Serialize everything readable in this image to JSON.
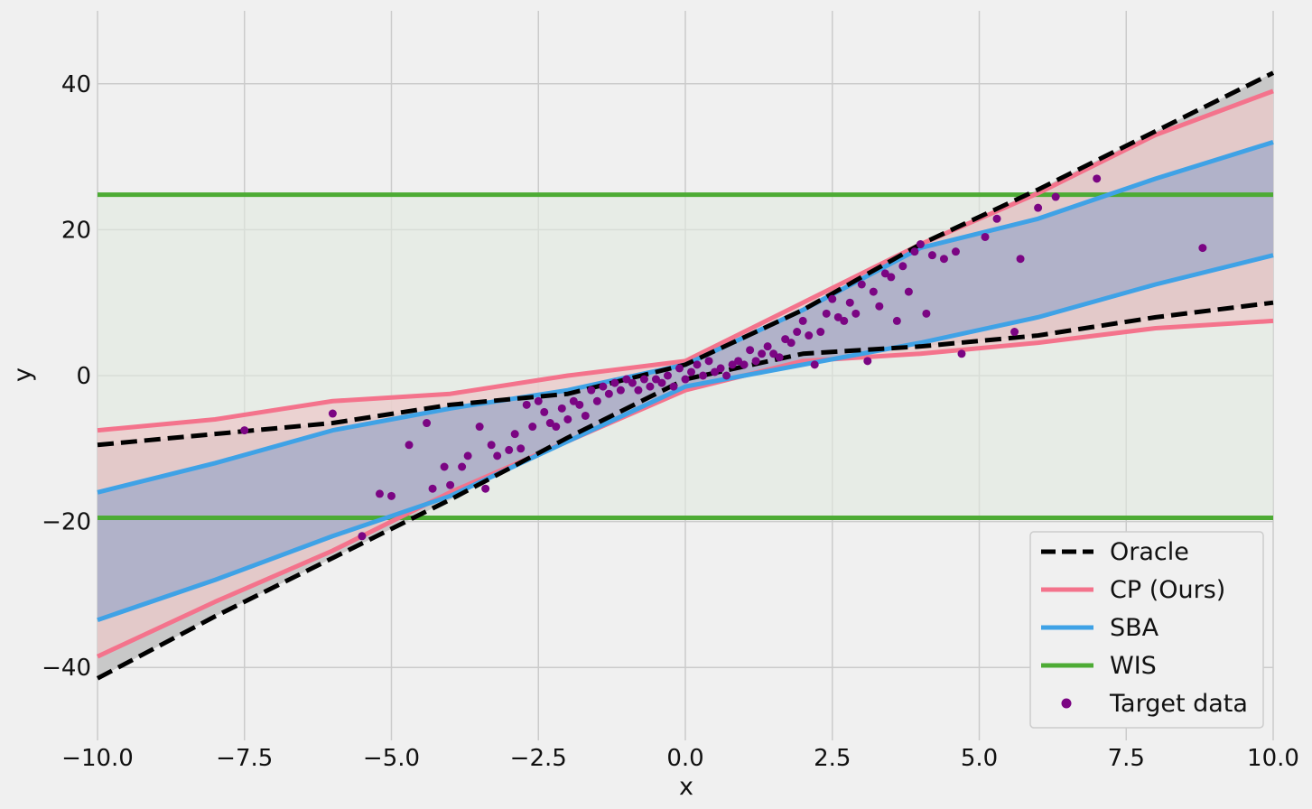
{
  "chart_data": {
    "type": "line",
    "title": "",
    "xlabel": "x",
    "ylabel": "y",
    "xlim": [
      -10,
      10
    ],
    "ylim": [
      -50,
      50
    ],
    "grid": true,
    "legend_position": "bottom-right",
    "xticks": [
      -10.0,
      -7.5,
      -5.0,
      -2.5,
      0.0,
      2.5,
      5.0,
      7.5,
      10.0
    ],
    "xtick_labels": [
      "−10.0",
      "−7.5",
      "−5.0",
      "−2.5",
      "0.0",
      "2.5",
      "5.0",
      "7.5",
      "10.0"
    ],
    "yticks": [
      -40,
      -20,
      0,
      20,
      40
    ],
    "ytick_labels": [
      "−40",
      "−20",
      "0",
      "20",
      "40"
    ],
    "colors": {
      "oracle": "#000000",
      "oracle_fill": "#c8c8c8",
      "cp": "#f4738c",
      "cp_fill": "#eccaca",
      "sba": "#3fa2e6",
      "sba_fill": "#a8aec9",
      "wis": "#4dab34",
      "wis_fill": "#e1eadf",
      "target": "#7b0583",
      "background": "#f0f0f0",
      "grid": "#cbcbcb"
    },
    "series": [
      {
        "name": "Oracle",
        "style": "dashed",
        "lower": {
          "x": [
            -10,
            -8,
            -6,
            -4,
            -2,
            0,
            2,
            4,
            6,
            8,
            10
          ],
          "y": [
            -41.5,
            -33,
            -25,
            -17,
            -8.5,
            -0.5,
            3,
            4,
            5.5,
            8,
            10
          ]
        },
        "upper": {
          "x": [
            -10,
            -8,
            -6,
            -4,
            -2,
            0,
            2,
            4,
            6,
            8,
            10
          ],
          "y": [
            -9.5,
            -8,
            -6.5,
            -4,
            -2.5,
            1.5,
            9,
            18,
            25.5,
            33.5,
            41.5
          ]
        }
      },
      {
        "name": "CP (Ours)",
        "style": "solid",
        "lower": {
          "x": [
            -10,
            -8,
            -6,
            -4,
            -2,
            0,
            2,
            4,
            6,
            8,
            10
          ],
          "y": [
            -38.5,
            -31,
            -24,
            -16,
            -9,
            -2,
            2,
            3,
            4.5,
            6.5,
            7.5
          ]
        },
        "upper": {
          "x": [
            -10,
            -8,
            -6,
            -4,
            -2,
            0,
            2,
            4,
            6,
            8,
            10
          ],
          "y": [
            -7.5,
            -6,
            -3.5,
            -2.5,
            0,
            2,
            10,
            18,
            25,
            33,
            39
          ]
        }
      },
      {
        "name": "SBA",
        "style": "solid",
        "lower": {
          "x": [
            -10,
            -8,
            -6,
            -4,
            -2,
            0,
            2,
            4,
            6,
            8,
            10
          ],
          "y": [
            -33.5,
            -28,
            -22,
            -16.5,
            -9,
            -1.5,
            1.5,
            4.5,
            8,
            12.5,
            16.5
          ]
        },
        "upper": {
          "x": [
            -10,
            -8,
            -6,
            -4,
            -2,
            0,
            2,
            4,
            6,
            8,
            10
          ],
          "y": [
            -16,
            -12,
            -7.5,
            -4.5,
            -2,
            1.5,
            9,
            17.5,
            21.5,
            27,
            32
          ]
        }
      },
      {
        "name": "WIS",
        "style": "solid",
        "lower": {
          "x": [
            -10,
            10
          ],
          "y": [
            -19.5,
            -19.5
          ]
        },
        "upper": {
          "x": [
            -10,
            10
          ],
          "y": [
            24.8,
            24.8
          ]
        }
      }
    ],
    "scatter": {
      "name": "Target data",
      "x": [
        -7.5,
        -6.0,
        -5.5,
        -5.2,
        -5.0,
        -4.7,
        -4.4,
        -4.3,
        -4.1,
        -4.0,
        -3.8,
        -3.7,
        -3.5,
        -3.4,
        -3.3,
        -3.2,
        -3.0,
        -2.9,
        -2.8,
        -2.7,
        -2.6,
        -2.5,
        -2.4,
        -2.3,
        -2.2,
        -2.1,
        -2.0,
        -1.9,
        -1.8,
        -1.7,
        -1.6,
        -1.5,
        -1.4,
        -1.3,
        -1.2,
        -1.1,
        -1.0,
        -0.9,
        -0.8,
        -0.7,
        -0.6,
        -0.5,
        -0.4,
        -0.3,
        -0.2,
        -0.1,
        0.0,
        0.1,
        0.2,
        0.3,
        0.4,
        0.5,
        0.6,
        0.7,
        0.8,
        0.9,
        1.0,
        1.1,
        1.2,
        1.3,
        1.4,
        1.5,
        1.6,
        1.7,
        1.8,
        1.9,
        2.0,
        2.1,
        2.2,
        2.3,
        2.4,
        2.5,
        2.6,
        2.7,
        2.8,
        2.9,
        3.0,
        3.1,
        3.2,
        3.3,
        3.4,
        3.5,
        3.6,
        3.7,
        3.8,
        3.9,
        4.0,
        4.1,
        4.2,
        4.4,
        4.6,
        4.7,
        5.1,
        5.3,
        5.6,
        5.7,
        6.0,
        6.3,
        7.0,
        8.8
      ],
      "y": [
        -7.5,
        -5.2,
        -22.0,
        -16.2,
        -16.5,
        -9.5,
        -6.5,
        -15.5,
        -12.5,
        -15.0,
        -12.5,
        -11.0,
        -7.0,
        -15.5,
        -9.5,
        -11.0,
        -10.2,
        -8.0,
        -10.0,
        -4.0,
        -7.0,
        -3.5,
        -5.0,
        -6.5,
        -7.0,
        -4.5,
        -6.0,
        -3.5,
        -4.0,
        -5.5,
        -2.0,
        -3.5,
        -1.5,
        -2.5,
        -1.0,
        -2.0,
        -0.5,
        -1.0,
        -2.0,
        -0.5,
        -1.5,
        -0.5,
        -1.0,
        0.0,
        -1.5,
        1.0,
        -0.5,
        0.5,
        1.5,
        0.0,
        2.0,
        0.5,
        1.0,
        0.0,
        1.5,
        2.0,
        1.5,
        3.5,
        2.0,
        3.0,
        4.0,
        3.0,
        2.5,
        5.0,
        4.5,
        6.0,
        7.5,
        5.5,
        1.5,
        6.0,
        8.5,
        10.5,
        8.0,
        7.5,
        10.0,
        8.5,
        12.5,
        2.0,
        11.5,
        9.5,
        14.0,
        13.5,
        7.5,
        15.0,
        11.5,
        17.0,
        18.0,
        8.5,
        16.5,
        16.0,
        17.0,
        3.0,
        19.0,
        21.5,
        6.0,
        16.0,
        23.0,
        24.5,
        27.0,
        17.5
      ]
    },
    "legend": [
      "Oracle",
      "CP (Ours)",
      "SBA",
      "WIS",
      "Target data"
    ]
  }
}
